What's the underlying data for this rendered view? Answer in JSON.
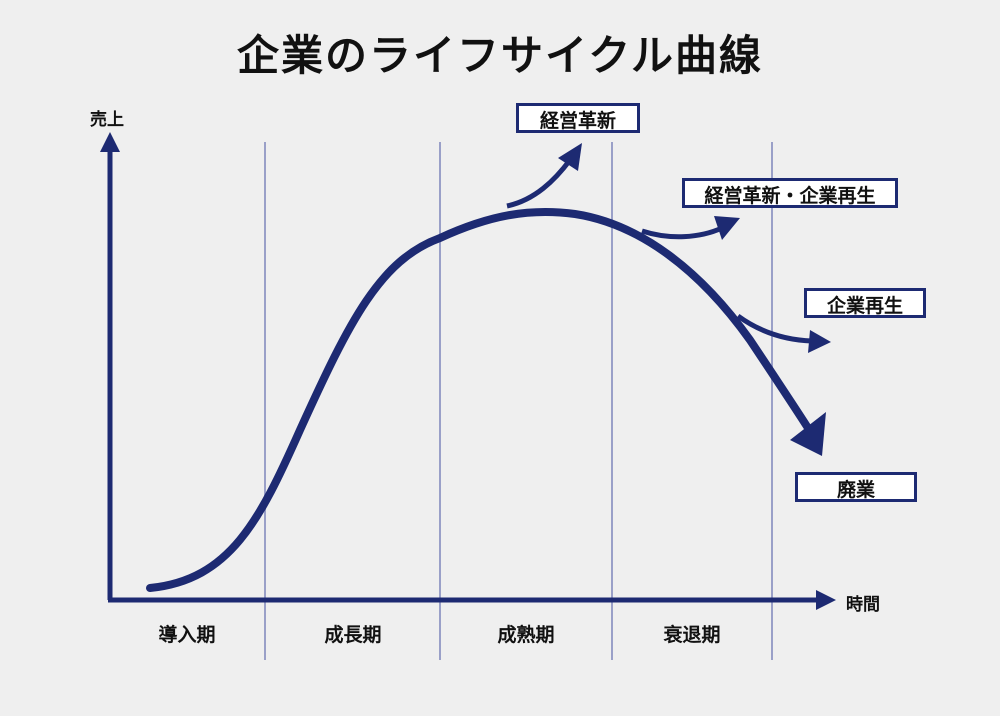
{
  "title": "企業のライフサイクル曲線",
  "axes": {
    "y_label": "売上",
    "x_label": "時間"
  },
  "phases": [
    "導入期",
    "成長期",
    "成熟期",
    "衰退期"
  ],
  "outcomes": {
    "innovation": "経営革新",
    "innovation_revival": "経営革新・企業再生",
    "revival": "企業再生",
    "closure": "廃業"
  },
  "colors": {
    "curve": "#1d2a72",
    "divider": "#9aa0c8",
    "background": "#efefef"
  }
}
